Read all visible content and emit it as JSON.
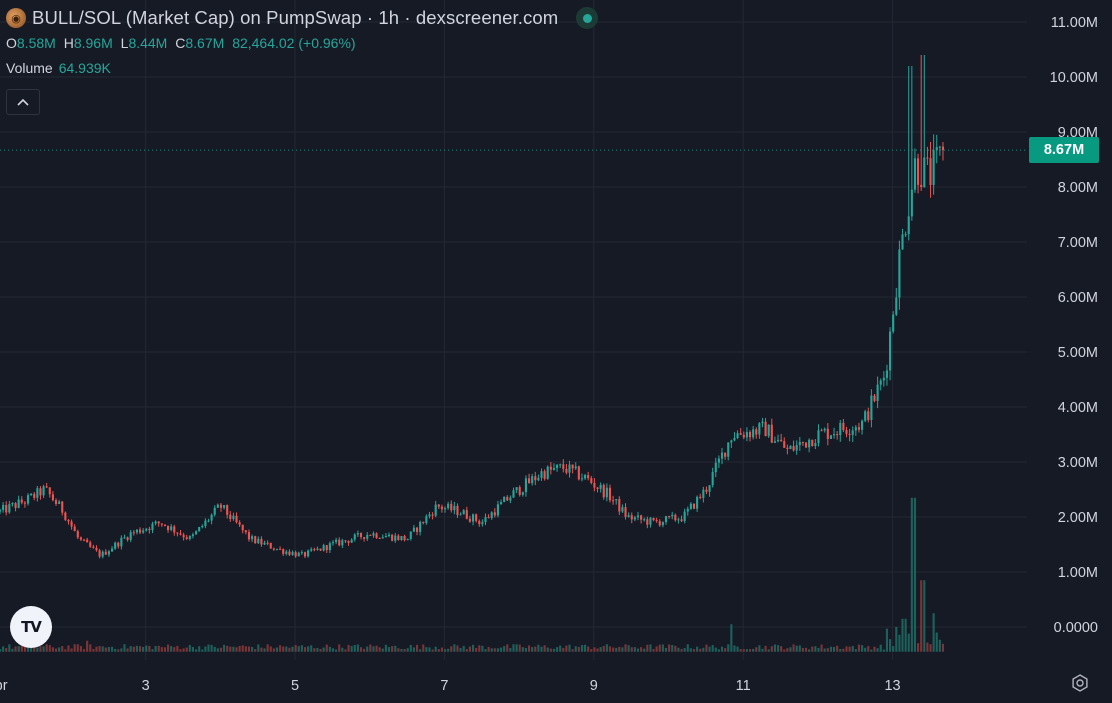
{
  "header": {
    "title": "BULL/SOL (Market Cap) on PumpSwap · 1h · dexscreener.com",
    "ohlc": [
      {
        "key": "O",
        "value": "8.58M"
      },
      {
        "key": "H",
        "value": "8.96M"
      },
      {
        "key": "L",
        "value": "8.44M"
      },
      {
        "key": "C",
        "value": "8.67M"
      }
    ],
    "change": "82,464.02 (+0.96%)",
    "volume_label": "Volume",
    "volume_value": "64.939K"
  },
  "current_price_label": "8.67M",
  "colors": {
    "background": "#161a25",
    "up": "#26a69a",
    "down": "#ef5350",
    "grid": "#242833",
    "text": "#d1d4dc",
    "price_tag": "#089981"
  },
  "icons": [
    "bull-token-icon",
    "live-status-dot-icon",
    "chevron-up-icon",
    "tradingview-logo-icon",
    "settings-gear-icon"
  ],
  "chart_data": {
    "type": "candlestick",
    "title": "BULL/SOL (Market Cap) on PumpSwap · 1h · dexscreener.com",
    "y_ticks": [
      "0.0000",
      "1.00M",
      "2.00M",
      "3.00M",
      "4.00M",
      "5.00M",
      "6.00M",
      "7.00M",
      "8.00M",
      "9.00M",
      "10.00M",
      "11.00M"
    ],
    "ylim": [
      -0.6,
      11.4
    ],
    "x_ticks": [
      "Apr",
      "3",
      "5",
      "7",
      "9",
      "11",
      "13"
    ],
    "x_tick_positions": [
      1,
      3,
      5,
      7,
      9,
      11,
      13
    ],
    "xlim": [
      1.05,
      14.8
    ],
    "last_close": 8.67,
    "grid": true,
    "anchors": [
      [
        1.05,
        2.1
      ],
      [
        1.4,
        2.3
      ],
      [
        1.65,
        2.5
      ],
      [
        1.9,
        2.1
      ],
      [
        2.1,
        1.6
      ],
      [
        2.4,
        1.3
      ],
      [
        2.8,
        1.7
      ],
      [
        3.2,
        1.9
      ],
      [
        3.6,
        1.6
      ],
      [
        4.0,
        2.2
      ],
      [
        4.4,
        1.6
      ],
      [
        4.8,
        1.4
      ],
      [
        5.1,
        1.3
      ],
      [
        5.5,
        1.5
      ],
      [
        6.0,
        1.7
      ],
      [
        6.5,
        1.6
      ],
      [
        6.9,
        2.2
      ],
      [
        7.2,
        2.1
      ],
      [
        7.5,
        1.9
      ],
      [
        7.9,
        2.4
      ],
      [
        8.3,
        2.8
      ],
      [
        8.6,
        2.9
      ],
      [
        8.9,
        2.7
      ],
      [
        9.2,
        2.4
      ],
      [
        9.45,
        2.0
      ],
      [
        9.8,
        1.9
      ],
      [
        10.2,
        2.0
      ],
      [
        10.5,
        2.5
      ],
      [
        10.85,
        3.5
      ],
      [
        11.3,
        3.6
      ],
      [
        11.6,
        3.2
      ],
      [
        12.0,
        3.5
      ],
      [
        12.3,
        3.6
      ],
      [
        12.6,
        3.7
      ],
      [
        12.9,
        4.6
      ],
      [
        13.1,
        6.8
      ],
      [
        13.3,
        8.4
      ],
      [
        13.5,
        8.2
      ],
      [
        13.7,
        8.67
      ]
    ],
    "volume_spikes": [
      [
        2.22,
        0.2
      ],
      [
        10.85,
        0.5
      ],
      [
        13.05,
        0.45
      ],
      [
        13.15,
        0.6
      ],
      [
        13.28,
        2.8
      ],
      [
        13.4,
        1.3
      ],
      [
        13.55,
        0.7
      ]
    ]
  }
}
